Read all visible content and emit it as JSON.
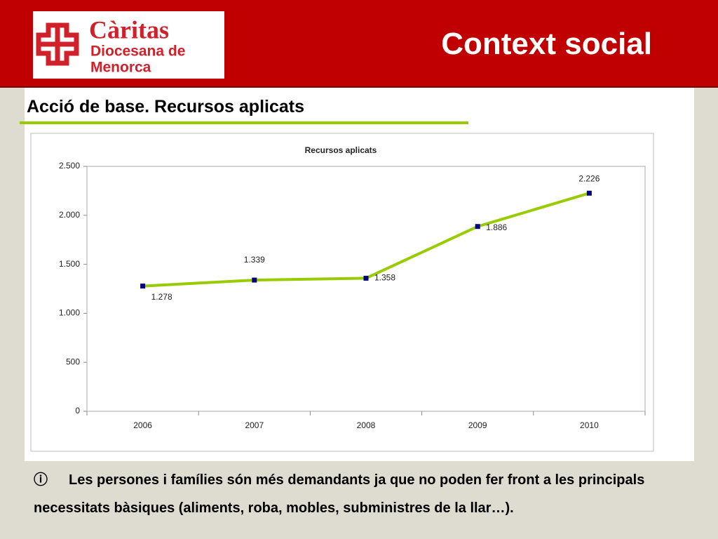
{
  "header": {
    "logo_name": "Càritas",
    "logo_line1": "Diocesana de",
    "logo_line2": "Menorca",
    "title": "Context social"
  },
  "subtitle": "Acció de base.  Recursos aplicats",
  "chart_data": {
    "type": "line",
    "title": "Recursos aplicats",
    "categories": [
      "2006",
      "2007",
      "2008",
      "2009",
      "2010"
    ],
    "values": [
      1278,
      1339,
      1358,
      1886,
      2226
    ],
    "value_labels": [
      "1.278",
      "1.339",
      "1.358",
      "1.886",
      "2.226"
    ],
    "color": "#99cc00",
    "marker_color": "#000080",
    "ylim": [
      0,
      2500
    ],
    "yticks": [
      0,
      500,
      {
        "value": 1000,
        "label": "1.000"
      },
      {
        "value": 1500,
        "label": "1.500"
      },
      {
        "value": 2000,
        "label": "2.000"
      },
      {
        "value": 2500,
        "label": "2.500"
      }
    ],
    "grid": false
  },
  "note": {
    "bullet": "ⓘ",
    "text": "Les persones i famílies són més demandants ja que no poden fer front a les principals necessitats bàsiques (aliments, roba, mobles, subministres de la llar…)."
  }
}
